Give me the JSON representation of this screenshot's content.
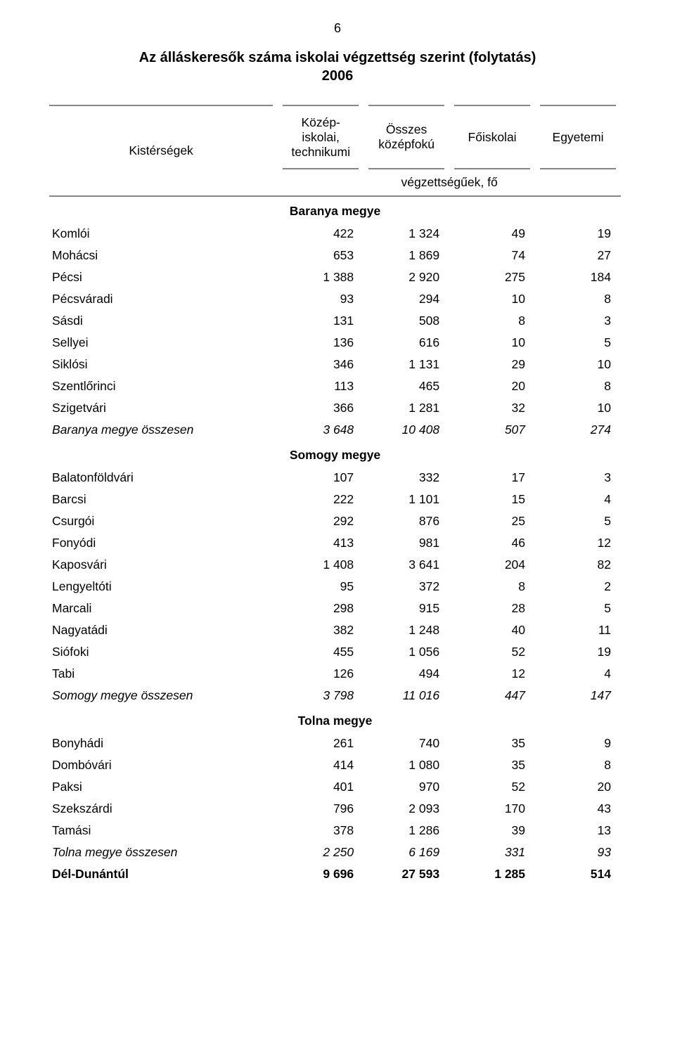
{
  "page_number": "6",
  "title_line1": "Az álláskeresők száma iskolai végzettség szerint (folytatás)",
  "title_line2": "2006",
  "columns": {
    "label": "Kistérségek",
    "c1": "Közép-\niskolai,\ntechnikumi",
    "c2": "Összes\nközépfokú",
    "c3": "Főiskolai",
    "c4": "Egyetemi",
    "unit": "végzettségűek, fő"
  },
  "sections": [
    {
      "name": "Baranya megye",
      "rows": [
        {
          "label": "Komlói",
          "v": [
            "422",
            "1 324",
            "49",
            "19"
          ]
        },
        {
          "label": "Mohácsi",
          "v": [
            "653",
            "1 869",
            "74",
            "27"
          ]
        },
        {
          "label": "Pécsi",
          "v": [
            "1 388",
            "2 920",
            "275",
            "184"
          ]
        },
        {
          "label": "Pécsváradi",
          "v": [
            "93",
            "294",
            "10",
            "8"
          ]
        },
        {
          "label": "Sásdi",
          "v": [
            "131",
            "508",
            "8",
            "3"
          ]
        },
        {
          "label": "Sellyei",
          "v": [
            "136",
            "616",
            "10",
            "5"
          ]
        },
        {
          "label": "Siklósi",
          "v": [
            "346",
            "1 131",
            "29",
            "10"
          ]
        },
        {
          "label": "Szentlőrinci",
          "v": [
            "113",
            "465",
            "20",
            "8"
          ]
        },
        {
          "label": "Szigetvári",
          "v": [
            "366",
            "1 281",
            "32",
            "10"
          ]
        }
      ],
      "total": {
        "label": "Baranya megye összesen",
        "v": [
          "3 648",
          "10 408",
          "507",
          "274"
        ]
      }
    },
    {
      "name": "Somogy megye",
      "rows": [
        {
          "label": "Balatonföldvári",
          "v": [
            "107",
            "332",
            "17",
            "3"
          ]
        },
        {
          "label": "Barcsi",
          "v": [
            "222",
            "1 101",
            "15",
            "4"
          ]
        },
        {
          "label": "Csurgói",
          "v": [
            "292",
            "876",
            "25",
            "5"
          ]
        },
        {
          "label": "Fonyódi",
          "v": [
            "413",
            "981",
            "46",
            "12"
          ]
        },
        {
          "label": "Kaposvári",
          "v": [
            "1 408",
            "3 641",
            "204",
            "82"
          ]
        },
        {
          "label": "Lengyeltóti",
          "v": [
            "95",
            "372",
            "8",
            "2"
          ]
        },
        {
          "label": "Marcali",
          "v": [
            "298",
            "915",
            "28",
            "5"
          ]
        },
        {
          "label": "Nagyatádi",
          "v": [
            "382",
            "1 248",
            "40",
            "11"
          ]
        },
        {
          "label": "Siófoki",
          "v": [
            "455",
            "1 056",
            "52",
            "19"
          ]
        },
        {
          "label": "Tabi",
          "v": [
            "126",
            "494",
            "12",
            "4"
          ]
        }
      ],
      "total": {
        "label": "Somogy megye összesen",
        "v": [
          "3 798",
          "11 016",
          "447",
          "147"
        ]
      }
    },
    {
      "name": "Tolna megye",
      "rows": [
        {
          "label": "Bonyhádi",
          "v": [
            "261",
            "740",
            "35",
            "9"
          ]
        },
        {
          "label": "Dombóvári",
          "v": [
            "414",
            "1 080",
            "35",
            "8"
          ]
        },
        {
          "label": "Paksi",
          "v": [
            "401",
            "970",
            "52",
            "20"
          ]
        },
        {
          "label": "Szekszárdi",
          "v": [
            "796",
            "2 093",
            "170",
            "43"
          ]
        },
        {
          "label": "Tamási",
          "v": [
            "378",
            "1 286",
            "39",
            "13"
          ]
        }
      ],
      "total": {
        "label": "Tolna megye összesen",
        "v": [
          "2 250",
          "6 169",
          "331",
          "93"
        ]
      }
    }
  ],
  "grand_total": {
    "label": "Dél-Dunántúl",
    "v": [
      "9 696",
      "27 593",
      "1 285",
      "514"
    ]
  },
  "style": {
    "border_color": "#868686",
    "text_color": "#000000",
    "background_color": "#ffffff",
    "font_family": "Arial",
    "title_fontsize_pt": 15,
    "body_fontsize_pt": 13
  }
}
